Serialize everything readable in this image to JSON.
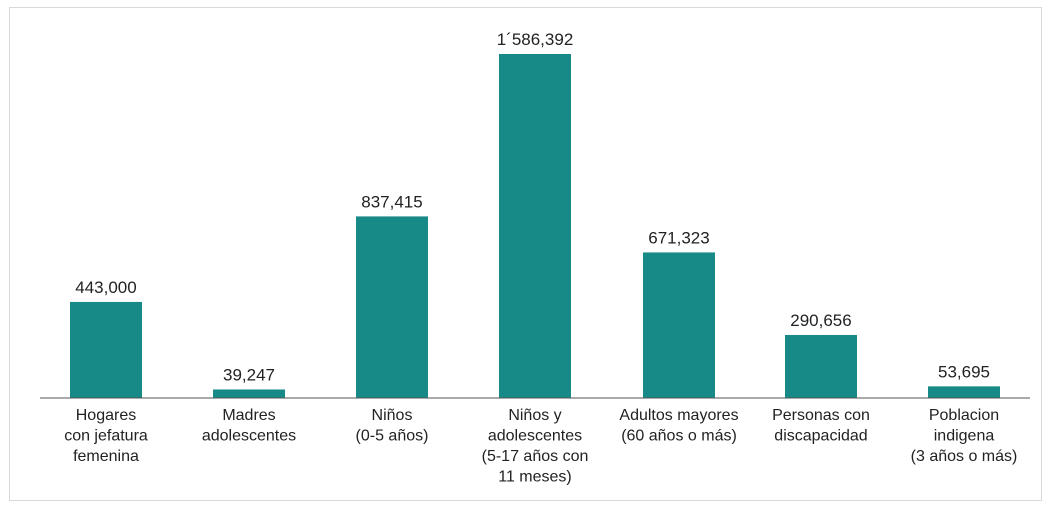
{
  "chart_data": {
    "type": "bar",
    "title": "",
    "xlabel": "",
    "ylabel": "",
    "ylim": [
      0,
      1586392
    ],
    "grid": false,
    "legend": "none",
    "bar_color": "#178a87",
    "categories": [
      [
        "Hogares",
        "con jefatura",
        "femenina"
      ],
      [
        "Madres",
        "adolescentes"
      ],
      [
        "Niños",
        "(0-5 años)"
      ],
      [
        "Niños y",
        "adolescentes",
        "(5-17 años con",
        "11 meses)"
      ],
      [
        "Adultos mayores",
        "(60 años o más)"
      ],
      [
        "Personas con",
        "discapacidad"
      ],
      [
        "Poblacion",
        "indigena",
        "(3 años o más)"
      ]
    ],
    "values": [
      443000,
      39247,
      837415,
      1586392,
      671323,
      290656,
      53695
    ],
    "value_labels": [
      "443,000",
      "39,247",
      "837,415",
      "1´586,392",
      "671,323",
      "290,656",
      "53,695"
    ]
  }
}
